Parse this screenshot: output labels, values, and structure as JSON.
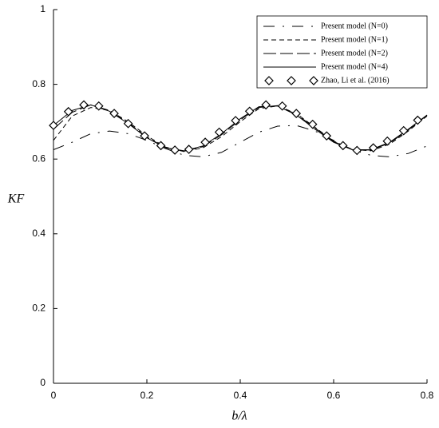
{
  "chart_data": {
    "type": "line",
    "xlabel": "b/λ",
    "ylabel": "KF",
    "xlim": [
      0,
      0.8
    ],
    "ylim": [
      0,
      1
    ],
    "xticks": [
      0,
      0.2,
      0.4,
      0.6,
      0.8
    ],
    "yticks": [
      0,
      0.2,
      0.4,
      0.6,
      0.8,
      1
    ],
    "legend": "top-right",
    "x": [
      0,
      0.04,
      0.08,
      0.12,
      0.16,
      0.2,
      0.24,
      0.28,
      0.32,
      0.36,
      0.4,
      0.44,
      0.48,
      0.52,
      0.56,
      0.6,
      0.64,
      0.68,
      0.72,
      0.76,
      0.8
    ],
    "series": [
      {
        "name": "Present model (N=0)",
        "color": "#000000",
        "linestyle": "dashdot",
        "values": [
          0.625,
          0.645,
          0.668,
          0.675,
          0.668,
          0.65,
          0.628,
          0.61,
          0.606,
          0.618,
          0.645,
          0.672,
          0.688,
          0.69,
          0.675,
          0.65,
          0.625,
          0.61,
          0.606,
          0.615,
          0.635
        ]
      },
      {
        "name": "Present model (N=1)",
        "color": "#000000",
        "linestyle": "dashed",
        "values": [
          0.65,
          0.715,
          0.738,
          0.73,
          0.7,
          0.662,
          0.632,
          0.62,
          0.63,
          0.66,
          0.7,
          0.735,
          0.742,
          0.722,
          0.685,
          0.648,
          0.626,
          0.622,
          0.64,
          0.675,
          0.715
        ]
      },
      {
        "name": "Present model (N=2)",
        "color": "#000000",
        "linestyle": "longdash",
        "values": [
          0.68,
          0.725,
          0.745,
          0.73,
          0.697,
          0.659,
          0.63,
          0.621,
          0.633,
          0.665,
          0.705,
          0.738,
          0.743,
          0.72,
          0.683,
          0.647,
          0.625,
          0.624,
          0.643,
          0.678,
          0.717
        ]
      },
      {
        "name": "Present model (N=4)",
        "color": "#000000",
        "linestyle": "solid",
        "values": [
          0.69,
          0.73,
          0.745,
          0.728,
          0.695,
          0.657,
          0.63,
          0.622,
          0.635,
          0.668,
          0.708,
          0.74,
          0.742,
          0.718,
          0.68,
          0.645,
          0.625,
          0.625,
          0.645,
          0.68,
          0.718
        ]
      },
      {
        "name": "Zhao, Li et al. (2016)",
        "color": "#000000",
        "marker": "diamond",
        "x": [
          0,
          0.032,
          0.065,
          0.097,
          0.13,
          0.16,
          0.195,
          0.23,
          0.26,
          0.29,
          0.325,
          0.355,
          0.39,
          0.42,
          0.455,
          0.49,
          0.52,
          0.555,
          0.585,
          0.62,
          0.65,
          0.685,
          0.715,
          0.75,
          0.78
        ],
        "values": [
          0.69,
          0.727,
          0.745,
          0.742,
          0.722,
          0.695,
          0.662,
          0.636,
          0.624,
          0.626,
          0.645,
          0.672,
          0.703,
          0.728,
          0.745,
          0.742,
          0.722,
          0.693,
          0.662,
          0.636,
          0.623,
          0.63,
          0.648,
          0.676,
          0.704
        ]
      }
    ]
  }
}
